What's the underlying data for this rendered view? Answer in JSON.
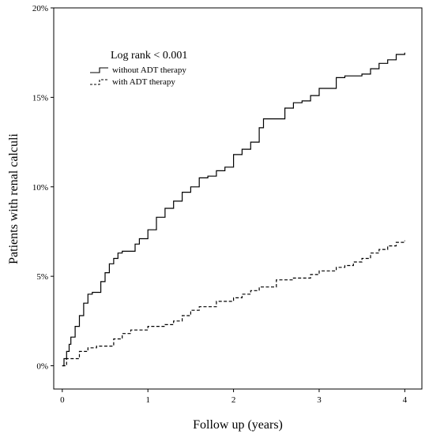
{
  "chart_data": {
    "type": "line",
    "xlabel": "Follow up (years)",
    "ylabel": "Patients with renal calculi",
    "xlim": [
      -0.1,
      4.2
    ],
    "ylim": [
      -0.013,
      0.2
    ],
    "x_ticks": [
      0,
      1,
      2,
      3,
      4
    ],
    "x_tick_labels": [
      "0",
      "1",
      "2",
      "3",
      "4"
    ],
    "y_ticks": [
      0,
      0.05,
      0.1,
      0.15,
      0.2
    ],
    "y_tick_labels": [
      "0%",
      "5%",
      "10%",
      "15%",
      "20%"
    ],
    "legend": {
      "title": "Log rank < 0.001",
      "placement": "top-left"
    },
    "series": [
      {
        "name": "without ADT therapy",
        "style": "solid",
        "color": "#000000",
        "x": [
          0,
          0.02,
          0.05,
          0.08,
          0.1,
          0.15,
          0.2,
          0.25,
          0.3,
          0.35,
          0.45,
          0.5,
          0.55,
          0.6,
          0.65,
          0.7,
          0.8,
          0.85,
          0.9,
          1.0,
          1.1,
          1.2,
          1.3,
          1.4,
          1.5,
          1.6,
          1.7,
          1.8,
          1.9,
          2.0,
          2.1,
          2.2,
          2.3,
          2.35,
          2.5,
          2.6,
          2.7,
          2.8,
          2.9,
          3.0,
          3.2,
          3.3,
          3.5,
          3.6,
          3.7,
          3.8,
          3.9,
          4.0
        ],
        "y": [
          0,
          0.004,
          0.008,
          0.012,
          0.016,
          0.022,
          0.028,
          0.035,
          0.04,
          0.041,
          0.047,
          0.052,
          0.057,
          0.06,
          0.063,
          0.064,
          0.064,
          0.068,
          0.071,
          0.076,
          0.083,
          0.088,
          0.092,
          0.097,
          0.1,
          0.105,
          0.106,
          0.109,
          0.111,
          0.118,
          0.121,
          0.125,
          0.133,
          0.138,
          0.138,
          0.144,
          0.147,
          0.148,
          0.151,
          0.155,
          0.161,
          0.162,
          0.163,
          0.166,
          0.169,
          0.171,
          0.174,
          0.175
        ]
      },
      {
        "name": "with ADT therapy",
        "style": "dashed",
        "color": "#000000",
        "x": [
          0,
          0.05,
          0.2,
          0.3,
          0.4,
          0.6,
          0.7,
          0.8,
          1.0,
          1.2,
          1.3,
          1.4,
          1.5,
          1.6,
          1.8,
          2.0,
          2.1,
          2.2,
          2.3,
          2.5,
          2.7,
          2.9,
          3.0,
          3.2,
          3.3,
          3.4,
          3.5,
          3.6,
          3.7,
          3.8,
          3.9,
          4.0
        ],
        "y": [
          0,
          0.004,
          0.008,
          0.01,
          0.011,
          0.015,
          0.018,
          0.02,
          0.022,
          0.023,
          0.025,
          0.028,
          0.031,
          0.033,
          0.036,
          0.038,
          0.04,
          0.042,
          0.044,
          0.048,
          0.049,
          0.051,
          0.053,
          0.055,
          0.056,
          0.058,
          0.06,
          0.063,
          0.065,
          0.067,
          0.069,
          0.07
        ]
      }
    ]
  }
}
